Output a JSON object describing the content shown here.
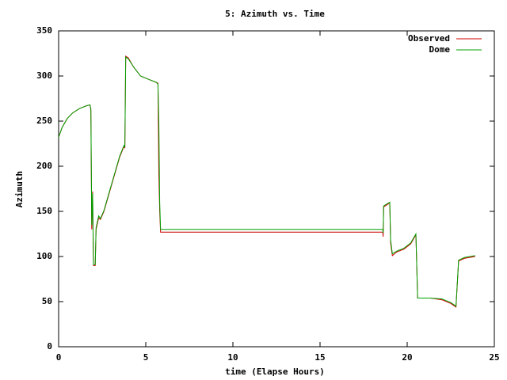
{
  "chart_data": {
    "type": "line",
    "title": "5: Azimuth vs. Time",
    "x_label": "time (Elapse Hours)",
    "y_label": "Azimuth",
    "x": [
      0,
      0.2,
      0.5,
      0.8,
      1.2,
      1.6,
      1.8,
      1.85,
      1.9,
      1.95,
      2.0,
      2.1,
      2.15,
      2.3,
      2.4,
      2.6,
      2.9,
      3.2,
      3.5,
      3.75,
      3.8,
      3.85,
      4.0,
      4.3,
      4.7,
      5.2,
      5.6,
      5.7,
      5.75,
      5.8,
      5.85,
      18.6,
      18.62,
      18.65,
      18.9,
      19.0,
      19.05,
      19.15,
      19.4,
      19.8,
      20.2,
      20.5,
      20.6,
      21.3,
      22.0,
      22.5,
      22.8,
      22.95,
      23.3,
      23.9
    ],
    "series": [
      {
        "name": "Observed",
        "color": "#d00000",
        "values": [
          232,
          243,
          253,
          259,
          264,
          267,
          268,
          262,
          130,
          172,
          90,
          90,
          130,
          143,
          141,
          150,
          170,
          190,
          210,
          222,
          220,
          322,
          320,
          310,
          300,
          296,
          293,
          292,
          192,
          150,
          127,
          127,
          122,
          155,
          158,
          160,
          115,
          101,
          105,
          108,
          114,
          124,
          54,
          54,
          52,
          48,
          44,
          95,
          98,
          100
        ]
      },
      {
        "name": "Dome",
        "color": "#00a000",
        "values": [
          232,
          243,
          253,
          259,
          264,
          267,
          268,
          264,
          135,
          170,
          91,
          91,
          132,
          145,
          142,
          151,
          171,
          191,
          211,
          223,
          221,
          321,
          319,
          310,
          300,
          296,
          293,
          291,
          250,
          160,
          130,
          130,
          126,
          156,
          159,
          160,
          118,
          103,
          106,
          109,
          115,
          125,
          54,
          54,
          53,
          49,
          45,
          96,
          99,
          101
        ]
      }
    ],
    "xlim": [
      0,
      25
    ],
    "xticks": [
      0,
      5,
      10,
      15,
      20,
      25
    ],
    "ylim": [
      0,
      350
    ],
    "yticks": [
      0,
      50,
      100,
      150,
      200,
      250,
      300,
      350
    ],
    "legend": "top-right"
  }
}
